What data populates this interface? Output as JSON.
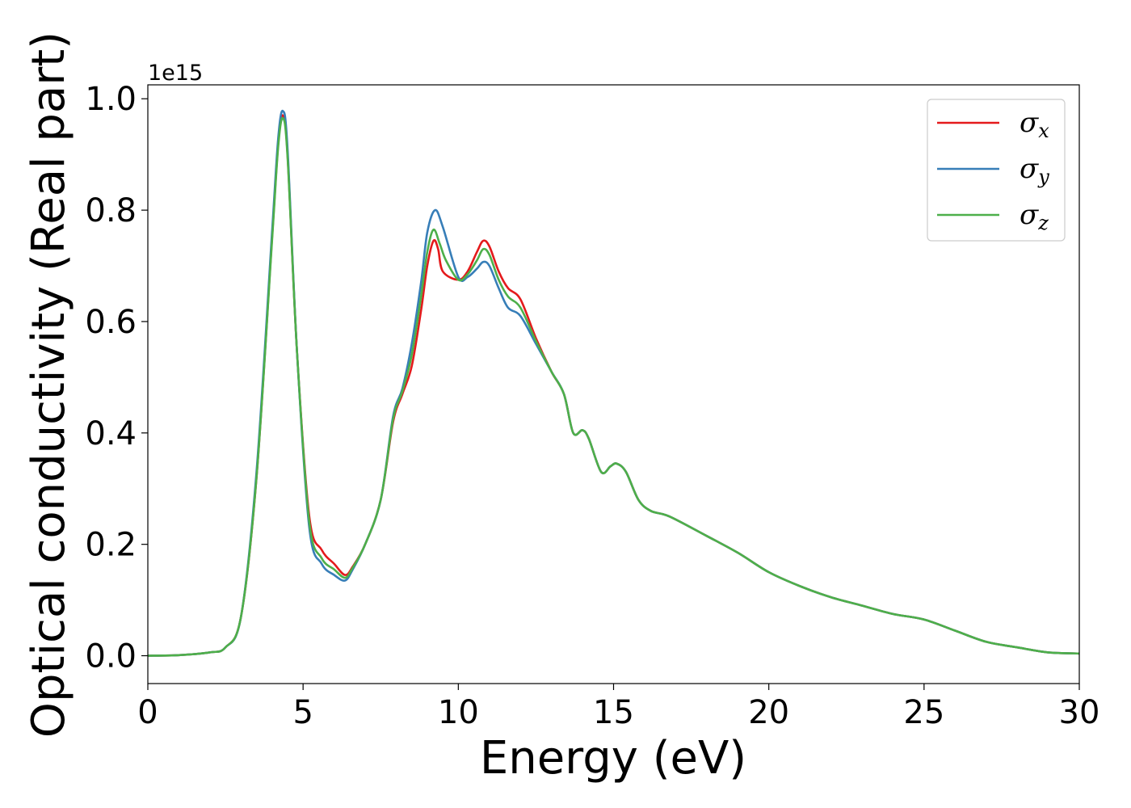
{
  "chart_data": {
    "type": "line",
    "title": "",
    "xlabel": "Energy (eV)",
    "ylabel": "Optical conductivity (Real part)",
    "y_offset_text": "1e15",
    "xlim": [
      0,
      30
    ],
    "ylim": [
      -0.05,
      1.025
    ],
    "xticks": [
      0,
      5,
      10,
      15,
      20,
      25,
      30
    ],
    "xtick_labels": [
      "0",
      "5",
      "10",
      "15",
      "20",
      "25",
      "30"
    ],
    "yticks": [
      0.0,
      0.2,
      0.4,
      0.6,
      0.8,
      1.0
    ],
    "ytick_labels": [
      "0.0",
      "0.2",
      "0.4",
      "0.6",
      "0.8",
      "1.0"
    ],
    "grid": false,
    "legend_position": "top-right",
    "series": [
      {
        "name": "σx",
        "symbol": "σ",
        "subscript": "x",
        "color": "#e41a1c",
        "points": [
          [
            0,
            0
          ],
          [
            1,
            0.001
          ],
          [
            2,
            0.006
          ],
          [
            2.5,
            0.015
          ],
          [
            3,
            0.07
          ],
          [
            3.5,
            0.32
          ],
          [
            4,
            0.75
          ],
          [
            4.2,
            0.92
          ],
          [
            4.35,
            0.97
          ],
          [
            4.5,
            0.9
          ],
          [
            4.8,
            0.55
          ],
          [
            5.2,
            0.25
          ],
          [
            5.6,
            0.19
          ],
          [
            6,
            0.165
          ],
          [
            6.35,
            0.145
          ],
          [
            6.6,
            0.16
          ],
          [
            7,
            0.2
          ],
          [
            7.5,
            0.28
          ],
          [
            7.9,
            0.42
          ],
          [
            8.2,
            0.47
          ],
          [
            8.5,
            0.52
          ],
          [
            8.8,
            0.62
          ],
          [
            9.0,
            0.7
          ],
          [
            9.2,
            0.745
          ],
          [
            9.35,
            0.73
          ],
          [
            9.5,
            0.69
          ],
          [
            10,
            0.675
          ],
          [
            10.3,
            0.69
          ],
          [
            10.6,
            0.725
          ],
          [
            10.8,
            0.745
          ],
          [
            11.0,
            0.735
          ],
          [
            11.3,
            0.69
          ],
          [
            11.6,
            0.66
          ],
          [
            12,
            0.64
          ],
          [
            12.5,
            0.57
          ],
          [
            13,
            0.51
          ],
          [
            13.4,
            0.47
          ],
          [
            13.7,
            0.4
          ],
          [
            14.0,
            0.405
          ],
          [
            14.2,
            0.39
          ],
          [
            14.6,
            0.33
          ],
          [
            14.9,
            0.34
          ],
          [
            15.1,
            0.345
          ],
          [
            15.4,
            0.33
          ],
          [
            15.8,
            0.28
          ],
          [
            16.2,
            0.26
          ],
          [
            16.8,
            0.25
          ],
          [
            18,
            0.215
          ],
          [
            19,
            0.185
          ],
          [
            20,
            0.15
          ],
          [
            21,
            0.125
          ],
          [
            22,
            0.105
          ],
          [
            23,
            0.09
          ],
          [
            24,
            0.075
          ],
          [
            25,
            0.065
          ],
          [
            26,
            0.045
          ],
          [
            27,
            0.025
          ],
          [
            28,
            0.015
          ],
          [
            29,
            0.006
          ],
          [
            30,
            0.004
          ]
        ]
      },
      {
        "name": "σy",
        "symbol": "σ",
        "subscript": "y",
        "color": "#377eb8",
        "points": [
          [
            0,
            0
          ],
          [
            1,
            0.001
          ],
          [
            2,
            0.006
          ],
          [
            2.5,
            0.015
          ],
          [
            3,
            0.07
          ],
          [
            3.5,
            0.33
          ],
          [
            4,
            0.76
          ],
          [
            4.2,
            0.93
          ],
          [
            4.35,
            0.978
          ],
          [
            4.5,
            0.91
          ],
          [
            4.8,
            0.55
          ],
          [
            5.2,
            0.23
          ],
          [
            5.6,
            0.165
          ],
          [
            6,
            0.145
          ],
          [
            6.35,
            0.135
          ],
          [
            6.6,
            0.155
          ],
          [
            7,
            0.2
          ],
          [
            7.5,
            0.28
          ],
          [
            7.9,
            0.43
          ],
          [
            8.2,
            0.48
          ],
          [
            8.5,
            0.56
          ],
          [
            8.8,
            0.67
          ],
          [
            9.0,
            0.76
          ],
          [
            9.25,
            0.8
          ],
          [
            9.5,
            0.77
          ],
          [
            10,
            0.68
          ],
          [
            10.3,
            0.68
          ],
          [
            10.6,
            0.695
          ],
          [
            10.8,
            0.707
          ],
          [
            11.0,
            0.7
          ],
          [
            11.3,
            0.66
          ],
          [
            11.6,
            0.625
          ],
          [
            12,
            0.61
          ],
          [
            12.5,
            0.56
          ],
          [
            13,
            0.51
          ],
          [
            13.4,
            0.47
          ],
          [
            13.7,
            0.4
          ],
          [
            14.0,
            0.405
          ],
          [
            14.2,
            0.39
          ],
          [
            14.6,
            0.33
          ],
          [
            14.9,
            0.34
          ],
          [
            15.1,
            0.345
          ],
          [
            15.4,
            0.33
          ],
          [
            15.8,
            0.28
          ],
          [
            16.2,
            0.26
          ],
          [
            16.8,
            0.25
          ],
          [
            18,
            0.215
          ],
          [
            19,
            0.185
          ],
          [
            20,
            0.15
          ],
          [
            21,
            0.125
          ],
          [
            22,
            0.105
          ],
          [
            23,
            0.09
          ],
          [
            24,
            0.075
          ],
          [
            25,
            0.065
          ],
          [
            26,
            0.045
          ],
          [
            27,
            0.025
          ],
          [
            28,
            0.015
          ],
          [
            29,
            0.006
          ],
          [
            30,
            0.004
          ]
        ]
      },
      {
        "name": "σz",
        "symbol": "σ",
        "subscript": "z",
        "color": "#4daf4a",
        "points": [
          [
            0,
            0
          ],
          [
            1,
            0.001
          ],
          [
            2,
            0.006
          ],
          [
            2.5,
            0.015
          ],
          [
            3,
            0.07
          ],
          [
            3.5,
            0.32
          ],
          [
            4,
            0.745
          ],
          [
            4.2,
            0.915
          ],
          [
            4.35,
            0.965
          ],
          [
            4.5,
            0.895
          ],
          [
            4.8,
            0.55
          ],
          [
            5.2,
            0.24
          ],
          [
            5.6,
            0.175
          ],
          [
            6,
            0.155
          ],
          [
            6.35,
            0.14
          ],
          [
            6.6,
            0.158
          ],
          [
            7,
            0.2
          ],
          [
            7.5,
            0.28
          ],
          [
            7.9,
            0.425
          ],
          [
            8.2,
            0.475
          ],
          [
            8.5,
            0.54
          ],
          [
            8.8,
            0.645
          ],
          [
            9.0,
            0.725
          ],
          [
            9.2,
            0.765
          ],
          [
            9.4,
            0.74
          ],
          [
            9.6,
            0.71
          ],
          [
            10,
            0.675
          ],
          [
            10.3,
            0.685
          ],
          [
            10.6,
            0.71
          ],
          [
            10.8,
            0.73
          ],
          [
            11.0,
            0.72
          ],
          [
            11.3,
            0.675
          ],
          [
            11.6,
            0.645
          ],
          [
            12,
            0.625
          ],
          [
            12.5,
            0.565
          ],
          [
            13,
            0.51
          ],
          [
            13.4,
            0.47
          ],
          [
            13.7,
            0.4
          ],
          [
            14.0,
            0.405
          ],
          [
            14.2,
            0.39
          ],
          [
            14.6,
            0.33
          ],
          [
            14.9,
            0.34
          ],
          [
            15.1,
            0.345
          ],
          [
            15.4,
            0.33
          ],
          [
            15.8,
            0.28
          ],
          [
            16.2,
            0.26
          ],
          [
            16.8,
            0.25
          ],
          [
            18,
            0.215
          ],
          [
            19,
            0.185
          ],
          [
            20,
            0.15
          ],
          [
            21,
            0.125
          ],
          [
            22,
            0.105
          ],
          [
            23,
            0.09
          ],
          [
            24,
            0.075
          ],
          [
            25,
            0.065
          ],
          [
            26,
            0.045
          ],
          [
            27,
            0.025
          ],
          [
            28,
            0.015
          ],
          [
            29,
            0.006
          ],
          [
            30,
            0.004
          ]
        ]
      }
    ]
  }
}
